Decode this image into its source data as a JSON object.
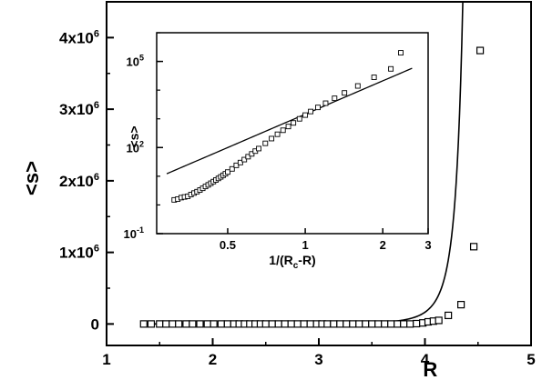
{
  "chart_data": [
    {
      "type": "scatter",
      "title": "",
      "xlabel": "R",
      "ylabel": "<s>",
      "xlim": [
        1,
        5
      ],
      "ylim": [
        -300000,
        4500000
      ],
      "x_ticks": [
        {
          "value": 1,
          "label": "1"
        },
        {
          "value": 2,
          "label": "2"
        },
        {
          "value": 3,
          "label": "3"
        },
        {
          "value": 4,
          "label": "4"
        },
        {
          "value": 5,
          "label": "5"
        }
      ],
      "y_ticks": [
        {
          "value": 0,
          "label": "0"
        },
        {
          "value": 1000000,
          "label": "1x10",
          "exp": "6"
        },
        {
          "value": 2000000,
          "label": "2x10",
          "exp": "6"
        },
        {
          "value": 3000000,
          "label": "3x10",
          "exp": "6"
        },
        {
          "value": 4000000,
          "label": "4x10",
          "exp": "6"
        }
      ],
      "grid": false,
      "series": [
        {
          "kind": "markers",
          "marker": "open-square",
          "x": [
            1.35,
            1.42,
            1.5,
            1.56,
            1.62,
            1.68,
            1.75,
            1.81,
            1.88,
            1.95,
            2.01,
            2.08,
            2.14,
            2.2,
            2.25,
            2.3,
            2.35,
            2.4,
            2.45,
            2.5,
            2.56,
            2.62,
            2.68,
            2.74,
            2.8,
            2.86,
            2.92,
            2.98,
            3.03,
            3.08,
            3.14,
            3.2,
            3.26,
            3.32,
            3.38,
            3.44,
            3.5,
            3.56,
            3.62,
            3.68,
            3.74,
            3.8,
            3.86,
            3.92,
            3.98,
            4.03,
            4.08,
            4.13,
            4.22,
            4.34,
            4.46,
            4.52
          ],
          "y": [
            0,
            0,
            0,
            0,
            0,
            0,
            0,
            0,
            0,
            0,
            0,
            0,
            0,
            0,
            0,
            0,
            0,
            0,
            0,
            0,
            0,
            0,
            0,
            0,
            0,
            0,
            0,
            0,
            0,
            0,
            0,
            0,
            0,
            0,
            0,
            0,
            0,
            0,
            0,
            0,
            0,
            0,
            0,
            5000,
            15000,
            30000,
            40000,
            50000,
            120000,
            270000,
            1080000,
            3820000
          ]
        },
        {
          "kind": "line",
          "note": "power-law fit",
          "Rc": 4.62,
          "amplitude": 26000,
          "exponent": 3.86,
          "x_range": [
            1.35,
            4.55
          ]
        }
      ]
    },
    {
      "type": "scatter",
      "title": "",
      "inset": true,
      "xlabel": "1/(R",
      "xlabel_sub": "c",
      "xlabel_tail": "-R)",
      "ylabel": "<s>",
      "x_scale": "log",
      "y_scale": "log",
      "xlim": [
        0.265,
        3
      ],
      "ylim": [
        0.1,
        1000000
      ],
      "x_ticks": [
        {
          "value": 0.5,
          "label": "0.5"
        },
        {
          "value": 1,
          "label": "1"
        },
        {
          "value": 2,
          "label": "2"
        },
        {
          "value": 3,
          "label": "3"
        }
      ],
      "y_ticks": [
        {
          "value": 0.1,
          "label": "10",
          "exp": "-1"
        },
        {
          "value": 100,
          "label": "10",
          "exp": "2"
        },
        {
          "value": 100000,
          "label": "10",
          "exp": "5"
        }
      ],
      "series": [
        {
          "kind": "markers",
          "marker": "open-square",
          "x": [
            0.31,
            0.32,
            0.33,
            0.34,
            0.35,
            0.36,
            0.37,
            0.38,
            0.39,
            0.4,
            0.41,
            0.42,
            0.43,
            0.44,
            0.45,
            0.46,
            0.47,
            0.48,
            0.49,
            0.5,
            0.52,
            0.54,
            0.56,
            0.58,
            0.6,
            0.62,
            0.64,
            0.66,
            0.7,
            0.74,
            0.78,
            0.82,
            0.86,
            0.9,
            0.95,
            1.0,
            1.05,
            1.12,
            1.2,
            1.3,
            1.42,
            1.6,
            1.85,
            2.15,
            2.35
          ],
          "y": [
            1.5,
            1.6,
            1.8,
            1.9,
            2.0,
            2.3,
            2.6,
            2.9,
            3.3,
            3.8,
            4.4,
            5.0,
            5.7,
            6.5,
            7.4,
            8.4,
            9.5,
            10.8,
            12.2,
            14,
            18,
            24,
            30,
            38,
            48,
            60,
            75,
            92,
            140,
            205,
            290,
            400,
            540,
            720,
            1000,
            1350,
            1800,
            2500,
            3500,
            5200,
            8000,
            14000,
            28000,
            55000,
            200000
          ]
        },
        {
          "kind": "line",
          "note": "power-law fit",
          "amplitude": 1450,
          "exponent": 3.86,
          "x_range": [
            0.29,
            2.6
          ]
        }
      ]
    }
  ]
}
